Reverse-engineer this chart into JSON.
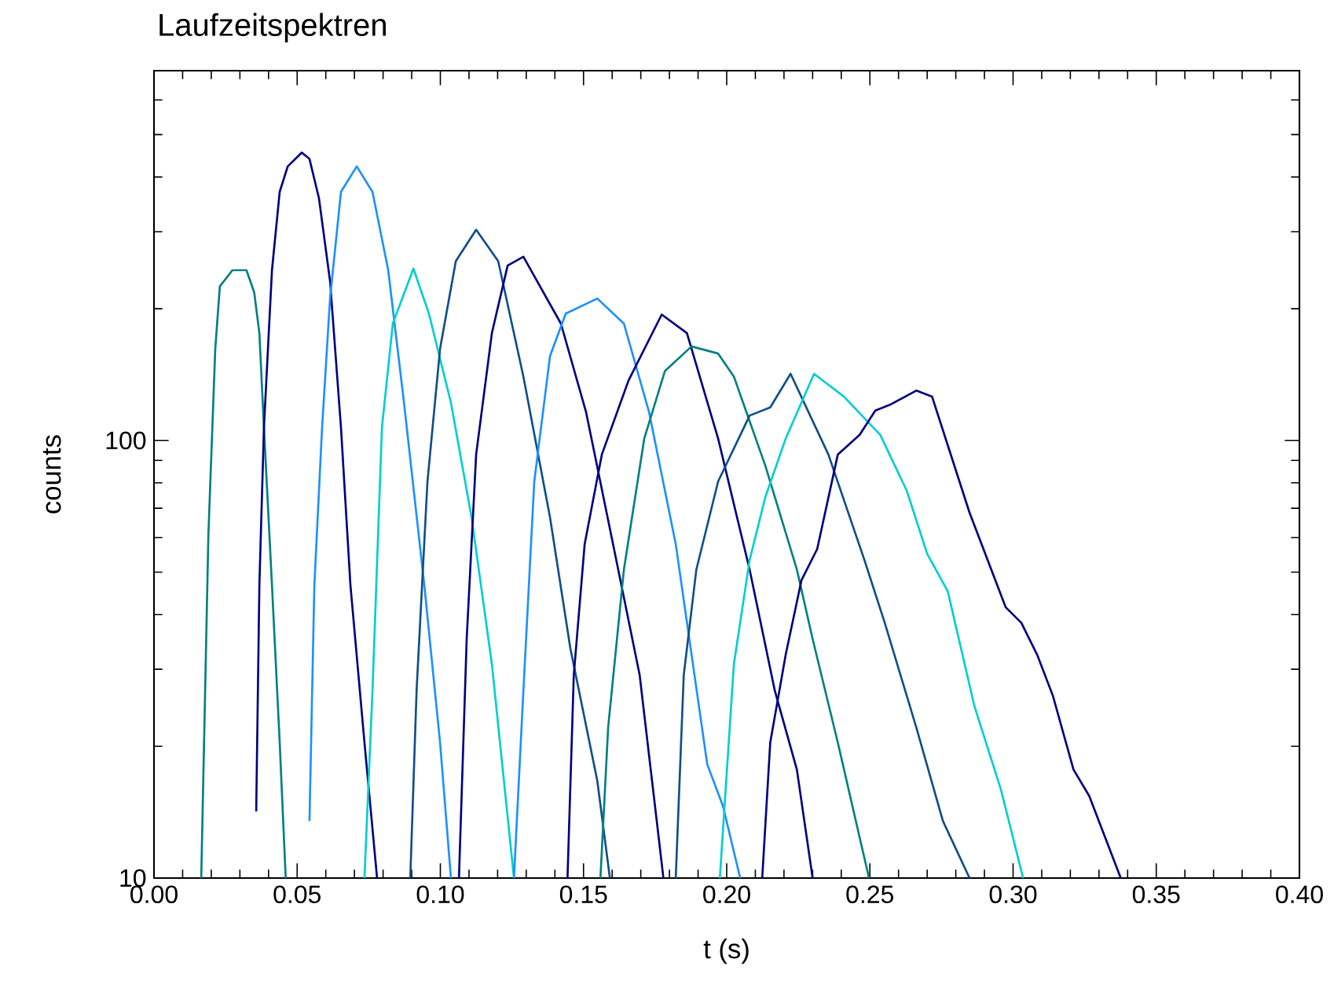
{
  "chart_data": {
    "type": "line",
    "title": "Laufzeitspektren",
    "xlabel": "t (s)",
    "ylabel": "counts",
    "log": "y",
    "xlim": [
      0,
      0.4
    ],
    "ylim": [
      10,
      700
    ],
    "xticks": [
      {
        "value": 0,
        "label": "0.00"
      },
      {
        "value": 0.01,
        "label": null
      },
      {
        "value": 0.02,
        "label": null
      },
      {
        "value": 0.03,
        "label": null
      },
      {
        "value": 0.04,
        "label": null
      },
      {
        "value": 0.05,
        "label": "0.05"
      },
      {
        "value": 0.06,
        "label": null
      },
      {
        "value": 0.07,
        "label": null
      },
      {
        "value": 0.08,
        "label": null
      },
      {
        "value": 0.09,
        "label": null
      },
      {
        "value": 0.1,
        "label": "0.10"
      },
      {
        "value": 0.11,
        "label": null
      },
      {
        "value": 0.12,
        "label": null
      },
      {
        "value": 0.13,
        "label": null
      },
      {
        "value": 0.14,
        "label": null
      },
      {
        "value": 0.15,
        "label": "0.15"
      },
      {
        "value": 0.16,
        "label": null
      },
      {
        "value": 0.17,
        "label": null
      },
      {
        "value": 0.18,
        "label": null
      },
      {
        "value": 0.19,
        "label": null
      },
      {
        "value": 0.2,
        "label": "0.20"
      },
      {
        "value": 0.21,
        "label": null
      },
      {
        "value": 0.22,
        "label": null
      },
      {
        "value": 0.23,
        "label": null
      },
      {
        "value": 0.24,
        "label": null
      },
      {
        "value": 0.25,
        "label": "0.25"
      },
      {
        "value": 0.26,
        "label": null
      },
      {
        "value": 0.27,
        "label": null
      },
      {
        "value": 0.28,
        "label": null
      },
      {
        "value": 0.29,
        "label": null
      },
      {
        "value": 0.3,
        "label": "0.30"
      },
      {
        "value": 0.31,
        "label": null
      },
      {
        "value": 0.32,
        "label": null
      },
      {
        "value": 0.33,
        "label": null
      },
      {
        "value": 0.34,
        "label": null
      },
      {
        "value": 0.35,
        "label": "0.35"
      },
      {
        "value": 0.36,
        "label": null
      },
      {
        "value": 0.37,
        "label": null
      },
      {
        "value": 0.38,
        "label": null
      },
      {
        "value": 0.39,
        "label": null
      },
      {
        "value": 0.4,
        "label": "0.40"
      }
    ],
    "yticks": [
      10,
      {
        "value": 20,
        "label": null
      },
      {
        "value": 30,
        "label": null
      },
      {
        "value": 40,
        "label": null
      },
      {
        "value": 50,
        "label": null
      },
      {
        "value": 60,
        "label": null
      },
      {
        "value": 70,
        "label": null
      },
      {
        "value": 80,
        "label": null
      },
      {
        "value": 90,
        "label": null
      },
      100,
      {
        "value": 200,
        "label": null
      },
      {
        "value": 300,
        "label": null
      },
      {
        "value": 400,
        "label": null
      },
      {
        "value": 500,
        "label": null
      },
      {
        "value": 600,
        "label": null
      }
    ],
    "series": [
      {
        "color": "#008080",
        "x": [
          0.0165,
          0.019,
          0.0214,
          0.023,
          0.0274,
          0.0323,
          0.035,
          0.0368,
          0.0384,
          0.0412,
          0.0439,
          0.046
        ],
        "values": [
          10,
          61,
          162,
          225,
          245,
          245,
          218,
          176,
          107,
          46.7,
          20.4,
          10
        ]
      },
      {
        "color": "#000080",
        "x": [
          0.0357,
          0.0368,
          0.0384,
          0.0412,
          0.0439,
          0.0467,
          0.0516,
          0.0543,
          0.0576,
          0.0615,
          0.0653,
          0.0686,
          0.0735,
          0.0779
        ],
        "values": [
          14.2,
          46.7,
          107,
          245,
          370,
          423,
          455,
          440,
          358,
          231,
          107,
          46.7,
          20.4,
          10
        ]
      },
      {
        "color": "#1e90ff",
        "x": [
          0.0543,
          0.056,
          0.0587,
          0.0615,
          0.0653,
          0.0708,
          0.0763,
          0.0818,
          0.0873,
          0.0944,
          0.0999,
          0.1037
        ],
        "values": [
          13.5,
          46.7,
          107,
          212,
          370,
          423,
          370,
          245,
          122,
          46.7,
          20.4,
          10
        ]
      },
      {
        "color": "#00ced1",
        "x": [
          0.0735,
          0.0763,
          0.0796,
          0.0834,
          0.0906,
          0.096,
          0.1037,
          0.1109,
          0.118,
          0.1257
        ],
        "values": [
          10,
          26.8,
          107,
          185,
          247,
          195,
          122,
          66.7,
          30.8,
          10
        ]
      },
      {
        "color": "#104e8b",
        "x": [
          0.0895,
          0.0917,
          0.0955,
          0.0999,
          0.1054,
          0.1125,
          0.1202,
          0.129,
          0.1383,
          0.1454,
          0.1548,
          0.1592
        ],
        "values": [
          10,
          26.8,
          80.6,
          162,
          257,
          303,
          257,
          140,
          66.7,
          33.5,
          16.7,
          10
        ]
      },
      {
        "color": "#000080",
        "x": [
          0.1065,
          0.1092,
          0.1125,
          0.118,
          0.1235,
          0.129,
          0.1421,
          0.1509,
          0.1603,
          0.1696,
          0.1779
        ],
        "values": [
          10,
          35.2,
          92.9,
          176,
          251,
          263,
          185,
          116,
          58,
          29.1,
          10
        ]
      },
      {
        "color": "#1e90ff",
        "x": [
          0.1257,
          0.129,
          0.1328,
          0.1383,
          0.1438,
          0.1548,
          0.1641,
          0.1729,
          0.1822,
          0.1932,
          0.1987,
          0.2047
        ],
        "values": [
          10,
          26.8,
          80.6,
          156,
          195,
          211,
          185,
          116,
          58,
          18.2,
          14.6,
          10
        ]
      },
      {
        "color": "#000080",
        "x": [
          0.1444,
          0.1466,
          0.1504,
          0.1564,
          0.1657,
          0.1773,
          0.1861,
          0.197,
          0.208,
          0.2168,
          0.2245,
          0.23
        ],
        "values": [
          10,
          29.1,
          58,
          92.9,
          137,
          194,
          176,
          101,
          50.7,
          26.8,
          17.7,
          10
        ]
      },
      {
        "color": "#008080",
        "x": [
          0.1559,
          0.1586,
          0.1641,
          0.1712,
          0.1784,
          0.1877,
          0.197,
          0.2025,
          0.2135,
          0.2245,
          0.23,
          0.2388,
          0.2464,
          0.2497
        ],
        "values": [
          10,
          22.1,
          50.7,
          101,
          144,
          164,
          158,
          140,
          87.5,
          50.7,
          35.2,
          20.4,
          12.4,
          10
        ]
      },
      {
        "color": "#104e8b",
        "x": [
          0.1822,
          0.185,
          0.1894,
          0.197,
          0.208,
          0.2152,
          0.2223,
          0.2355,
          0.2481,
          0.2552,
          0.2662,
          0.2755,
          0.2848
        ],
        "values": [
          10,
          29.1,
          50.7,
          80.6,
          114,
          119,
          142,
          92.9,
          53.3,
          38.3,
          22.1,
          13.5,
          10
        ]
      },
      {
        "color": "#00ced1",
        "x": [
          0.1976,
          0.2025,
          0.208,
          0.2135,
          0.2206,
          0.2305,
          0.2409,
          0.2536,
          0.2629,
          0.27,
          0.2772,
          0.2865,
          0.2958,
          0.3035
        ],
        "values": [
          10,
          30.8,
          53.3,
          74.3,
          101,
          142,
          126,
          103,
          76.7,
          55.1,
          45.2,
          24.7,
          15.9,
          10
        ]
      },
      {
        "color": "#000080",
        "x": [
          0.2124,
          0.2152,
          0.2206,
          0.2261,
          0.2316,
          0.2388,
          0.2464,
          0.2519,
          0.2574,
          0.2662,
          0.2717,
          0.2848,
          0.2974,
          0.3029,
          0.3084,
          0.3139,
          0.3211,
          0.3266,
          0.3376
        ],
        "values": [
          10,
          20.4,
          32.4,
          47.9,
          56.5,
          92.9,
          103,
          117,
          121,
          130,
          126,
          68.4,
          41.6,
          38.3,
          32.4,
          26.1,
          17.7,
          15.4,
          10
        ]
      }
    ]
  }
}
